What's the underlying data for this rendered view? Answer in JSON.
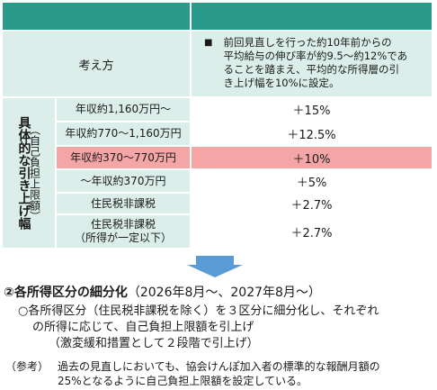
{
  "table": {
    "header_cells": [
      "",
      ""
    ],
    "basis": {
      "label": "考え方",
      "bullet": "■",
      "lines": [
        "前回見直しを行った約10年前からの",
        "平均給与の伸び率が約9.5～約12%であ",
        "ることを踏まえ、平均的な所得層の引",
        "き上げ幅を10%に設定。"
      ]
    },
    "side_label": {
      "main": "具体的な引き上げ幅",
      "sub": "（自己負担上限額）"
    },
    "rows": [
      {
        "category_lines": [
          "年収約1,160万円～"
        ],
        "rate": "＋15%"
      },
      {
        "category_lines": [
          "年収約770～1,160万円"
        ],
        "rate": "＋12.5%"
      },
      {
        "category_lines": [
          "年収約370～770万円"
        ],
        "rate": "＋10%",
        "highlight": true
      },
      {
        "category_lines": [
          "～年収約370万円"
        ],
        "rate": "＋5%"
      },
      {
        "category_lines": [
          "住民税非課税"
        ],
        "rate": "＋2.7%"
      },
      {
        "category_lines": [
          "住民税非課税",
          "（所得が一定以下）"
        ],
        "rate": "＋2.7%"
      }
    ]
  },
  "section": {
    "title": "②各所得区分の細分化",
    "period": "（2026年8月～、2027年8月～）",
    "lines": [
      "○各所得区分（住民税非課税を除く）を３区分に細分化し、それぞれ",
      "の所得に応じて、自己負担上限額を引上げ",
      "（激変緩和措置として２段階で引上げ）"
    ]
  },
  "reference": {
    "label": "（参考）",
    "lines": [
      "過去の見直しにおいても、協会けんぽ加入者の標準的な報酬月額の",
      "25%となるように自己負担上限額を設定している。"
    ]
  },
  "colors": {
    "header": "#2a9b8a",
    "row_fill": "#dbeee9",
    "highlight": "#f4a6a6",
    "arrow": "#5b9bd5"
  }
}
